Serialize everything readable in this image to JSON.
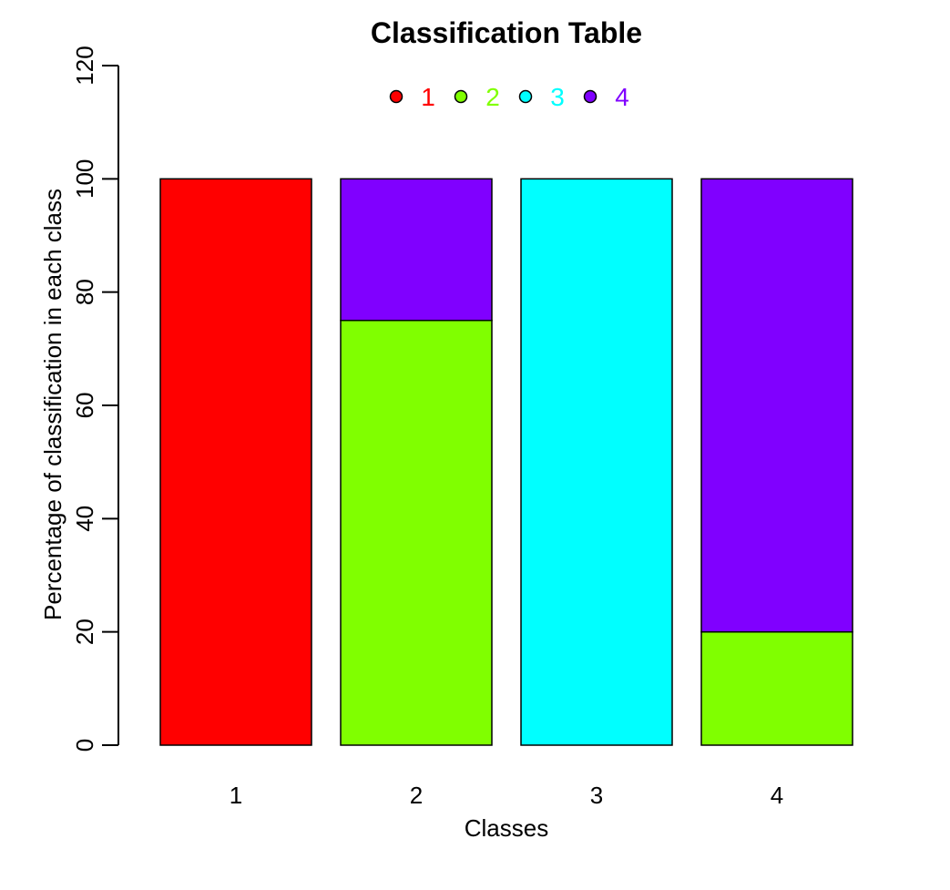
{
  "chart_data": {
    "type": "bar",
    "stacked": true,
    "title": "Classification Table",
    "xlabel": "Classes",
    "ylabel": "Percentage of classification in each class",
    "categories": [
      "1",
      "2",
      "3",
      "4"
    ],
    "ylim": [
      0,
      120
    ],
    "yticks": [
      0,
      20,
      40,
      60,
      80,
      100,
      120
    ],
    "grid": false,
    "legend_position": "top-center",
    "legend_orientation": "horizontal",
    "series": [
      {
        "name": "1",
        "color": "#FF0000",
        "values": [
          100,
          0,
          0,
          0
        ]
      },
      {
        "name": "2",
        "color": "#80FF00",
        "values": [
          0,
          75,
          0,
          20
        ]
      },
      {
        "name": "3",
        "color": "#00FFFF",
        "values": [
          0,
          0,
          100,
          0
        ]
      },
      {
        "name": "4",
        "color": "#8000FF",
        "values": [
          0,
          25,
          0,
          80
        ]
      }
    ]
  }
}
